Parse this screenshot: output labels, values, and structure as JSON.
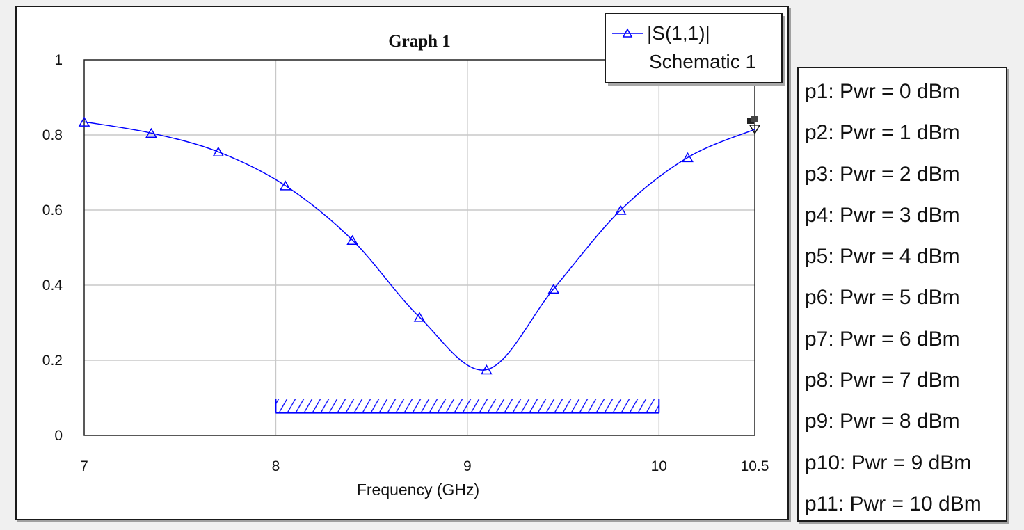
{
  "chart_data": {
    "type": "line",
    "title": "Graph 1",
    "xlabel": "Frequency (GHz)",
    "ylabel": "",
    "xlim": [
      7,
      10.5
    ],
    "ylim": [
      0,
      1
    ],
    "xticks": [
      7,
      8,
      9,
      10,
      10.5
    ],
    "xtick_labels": [
      "7",
      "8",
      "9",
      "10",
      "10.5"
    ],
    "yticks": [
      0,
      0.2,
      0.4,
      0.6,
      0.8,
      1
    ],
    "ytick_labels": [
      "0",
      "0.2",
      "0.4",
      "0.6",
      "0.8",
      "1"
    ],
    "grid": true,
    "legend_position": "top-right",
    "series": [
      {
        "name": "|S(1,1)|",
        "source": "Schematic 1",
        "color": "#0000ff",
        "marker": "triangle",
        "x": [
          7.0,
          7.35,
          7.7,
          8.05,
          8.4,
          8.75,
          9.1,
          9.45,
          9.8,
          10.15,
          10.5
        ],
        "y": [
          0.835,
          0.805,
          0.755,
          0.665,
          0.52,
          0.315,
          0.175,
          0.39,
          0.6,
          0.74,
          0.815
        ]
      }
    ],
    "goal": {
      "x_start": 8,
      "x_end": 10,
      "y": 0.06
    }
  },
  "parameters": [
    "p1: Pwr = 0 dBm",
    "p2: Pwr = 1 dBm",
    "p3: Pwr = 2 dBm",
    "p4: Pwr = 3 dBm",
    "p5: Pwr = 4 dBm",
    "p6: Pwr = 5 dBm",
    "p7: Pwr = 6 dBm",
    "p8: Pwr = 7 dBm",
    "p9: Pwr = 8 dBm",
    "p10: Pwr = 9 dBm",
    "p11: Pwr = 10 dBm"
  ]
}
